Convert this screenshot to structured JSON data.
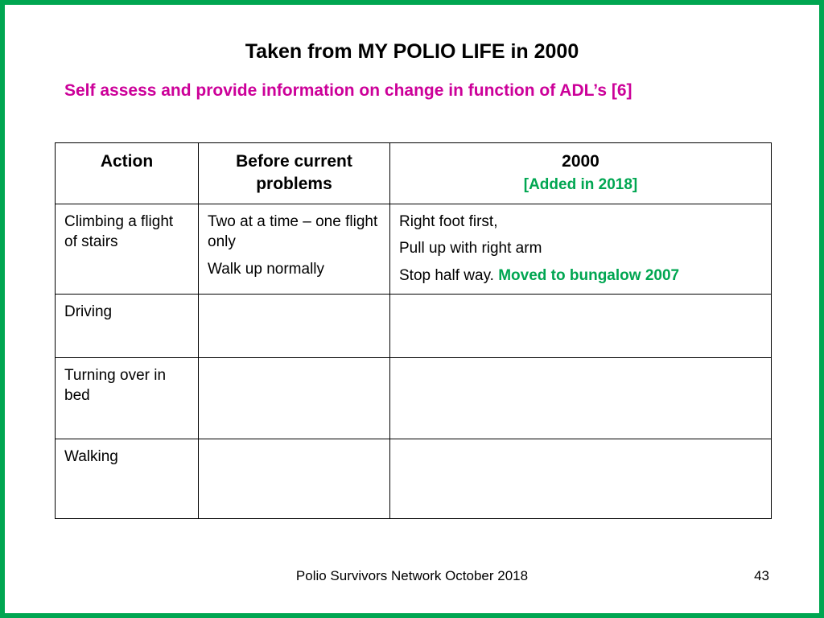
{
  "slide": {
    "title": "Taken from MY POLIO LIFE in 2000",
    "subtitle": "Self assess and provide information on change in function of ADL’s [6]"
  },
  "table": {
    "headers": {
      "action": "Action",
      "before": "Before current problems",
      "year": "2000",
      "year_note": "[Added in 2018]"
    },
    "rows": [
      {
        "action": "Climbing a flight of stairs",
        "before_1": "Two at a time – one flight only",
        "before_2": "Walk up normally",
        "year_1": "Right foot first,",
        "year_2": "Pull up with right arm",
        "year_3a": "Stop half way. ",
        "year_3b": "Moved to bungalow 2007"
      },
      {
        "action": "Driving"
      },
      {
        "action": "Turning over in bed"
      },
      {
        "action": "Walking"
      }
    ]
  },
  "footer": {
    "text": "Polio Survivors Network October 2018",
    "page_number": "43"
  },
  "colors": {
    "border_green": "#00A651",
    "subtitle_magenta": "#CC0099",
    "added_green": "#00A651"
  }
}
